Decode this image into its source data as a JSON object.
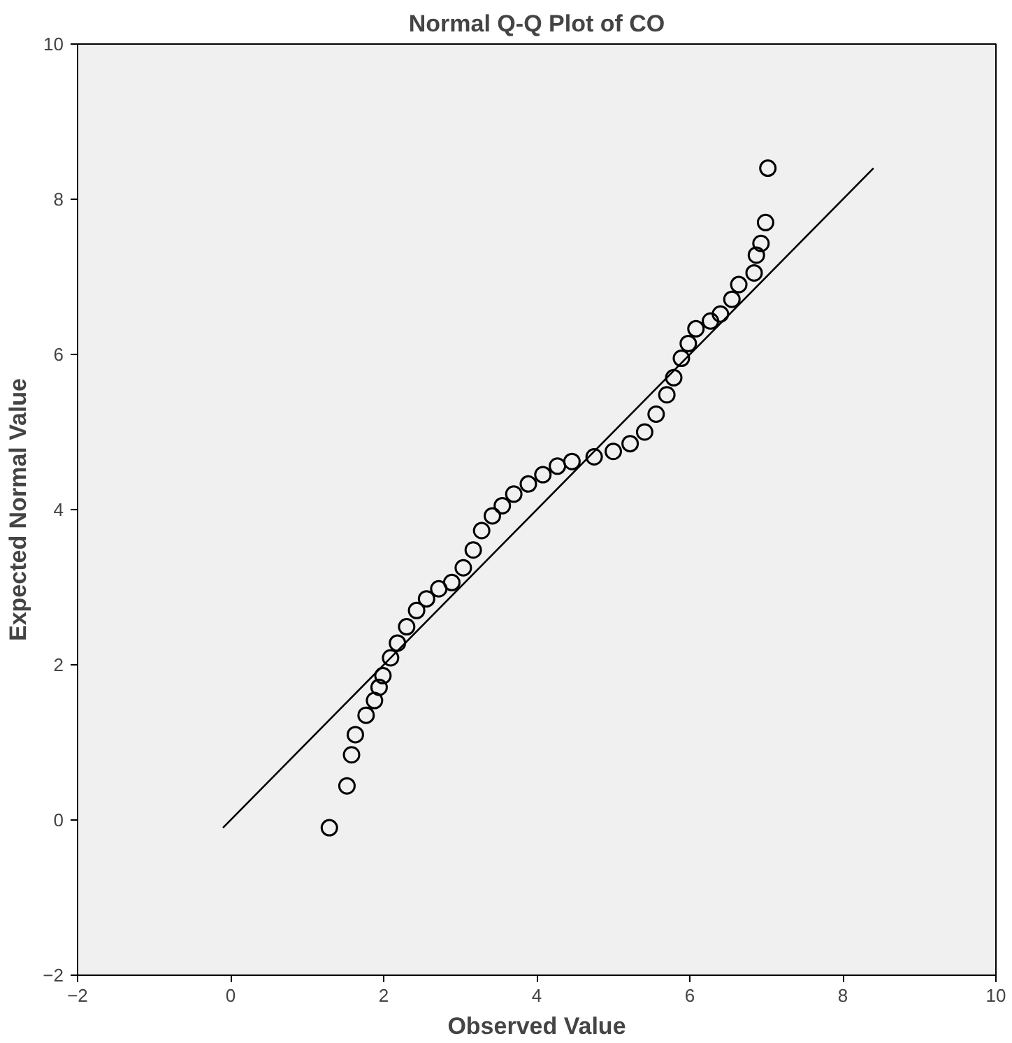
{
  "chart_data": {
    "type": "scatter",
    "title": "Normal Q-Q Plot of CO",
    "xlabel": "Observed Value",
    "ylabel": "Expected Normal Value",
    "xlim": [
      -2,
      10
    ],
    "ylim": [
      -2,
      10
    ],
    "xticks": [
      -2,
      0,
      2,
      4,
      6,
      8,
      10
    ],
    "yticks": [
      -2,
      0,
      2,
      4,
      6,
      8,
      10
    ],
    "grid": false,
    "series": [
      {
        "marker": "circle",
        "color": "#000000",
        "x": [
          1.29,
          1.52,
          1.58,
          1.63,
          1.77,
          1.88,
          1.94,
          1.99,
          2.09,
          2.18,
          2.3,
          2.43,
          2.56,
          2.72,
          2.89,
          3.04,
          3.17,
          3.28,
          3.42,
          3.55,
          3.7,
          3.89,
          4.08,
          4.27,
          4.46,
          4.75,
          5.0,
          5.22,
          5.41,
          5.56,
          5.7,
          5.79,
          5.89,
          5.98,
          6.08,
          6.27,
          6.4,
          6.55,
          6.64,
          6.84,
          6.87,
          6.93,
          6.99,
          7.02
        ],
        "values": [
          -0.1,
          0.44,
          0.84,
          1.1,
          1.35,
          1.54,
          1.71,
          1.86,
          2.09,
          2.28,
          2.49,
          2.7,
          2.85,
          2.98,
          3.06,
          3.25,
          3.48,
          3.73,
          3.92,
          4.05,
          4.2,
          4.33,
          4.45,
          4.56,
          4.62,
          4.68,
          4.75,
          4.85,
          5.0,
          5.23,
          5.48,
          5.7,
          5.95,
          6.14,
          6.33,
          6.43,
          6.52,
          6.71,
          6.9,
          7.05,
          7.28,
          7.43,
          7.7,
          8.4
        ]
      },
      {
        "type": "line",
        "color": "#000000",
        "x": [
          -0.1,
          8.4
        ],
        "values": [
          -0.1,
          8.4
        ]
      }
    ]
  }
}
